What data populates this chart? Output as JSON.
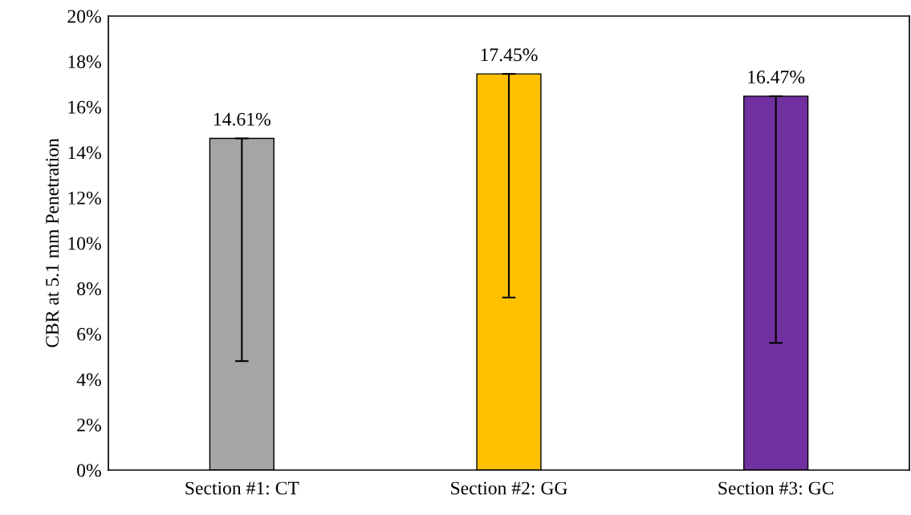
{
  "chart_data": {
    "type": "bar",
    "ylabel": "CBR at 5.1 mm Penetration",
    "categories": [
      "Section #1: CT",
      "Section #2: GG",
      "Section #3: GC"
    ],
    "values": [
      14.61,
      17.45,
      16.47
    ],
    "colors": [
      "#a5a5a5",
      "#ffc000",
      "#7030a0"
    ],
    "errors": [
      [
        4.8,
        14.61
      ],
      [
        7.6,
        17.45
      ],
      [
        5.6,
        16.47
      ]
    ],
    "value_labels": [
      "14.61%",
      "17.45%",
      "16.47%"
    ],
    "ylim": [
      0,
      20
    ],
    "yticks": [
      {
        "value": 0,
        "label": "0%"
      },
      {
        "value": 2,
        "label": "2%"
      },
      {
        "value": 4,
        "label": "4%"
      },
      {
        "value": 6,
        "label": "6%"
      },
      {
        "value": 8,
        "label": "8%"
      },
      {
        "value": 10,
        "label": "10%"
      },
      {
        "value": 12,
        "label": "12%"
      },
      {
        "value": 14,
        "label": "14%"
      },
      {
        "value": 16,
        "label": "16%"
      },
      {
        "value": 18,
        "label": "18%"
      },
      {
        "value": 20,
        "label": "20%"
      }
    ],
    "grid": false,
    "legend": false
  }
}
